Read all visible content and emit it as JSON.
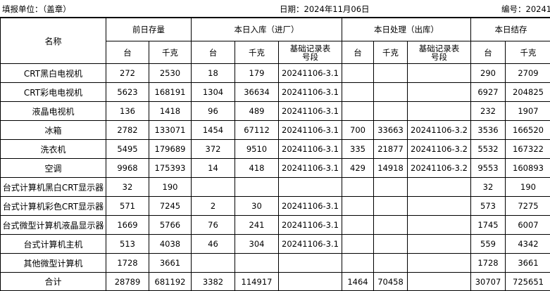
{
  "header": {
    "unit": "填报单位：（盖章）",
    "date": "日期：2024年11月06日",
    "number": "编号：20241"
  },
  "table": {
    "name_header": "名称",
    "group_headers": [
      {
        "label": "前日存量",
        "span": 2
      },
      {
        "label": "本日入库（进厂）",
        "span": 3
      },
      {
        "label": "本日处理（出库）",
        "span": 3
      },
      {
        "label": "本日结存",
        "span": 2
      }
    ],
    "sub_headers": [
      "台",
      "千克",
      "台",
      "千克",
      "基础记录表号段",
      "台",
      "千克",
      "基础记录表号段",
      "台",
      "千克"
    ],
    "rows": [
      [
        "CRT黑白电视机",
        272,
        2530,
        18,
        179,
        "20241106-3.1",
        null,
        null,
        null,
        290,
        2709
      ],
      [
        "CRT彩电电视机",
        5623,
        168191,
        1304,
        36634,
        "20241106-3.1",
        null,
        null,
        null,
        6927,
        204825
      ],
      [
        "液晶电视机",
        136,
        1418,
        96,
        489,
        "20241106-3.1",
        null,
        null,
        null,
        232,
        1907
      ],
      [
        "冰箱",
        2782,
        133071,
        1454,
        67112,
        "20241106-3.1",
        700,
        33663,
        "20241106-3.2",
        3536,
        166520
      ],
      [
        "洗衣机",
        5495,
        179689,
        372,
        9510,
        "20241106-3.1",
        335,
        21877,
        "20241106-3.2",
        5532,
        167322
      ],
      [
        "空调",
        9968,
        175393,
        14,
        418,
        "20241106-3.1",
        429,
        14918,
        "20241106-3.2",
        9553,
        160893
      ],
      [
        "台式计算机黑白CRT显示器",
        32,
        190,
        null,
        null,
        null,
        null,
        null,
        null,
        32,
        190
      ],
      [
        "台式计算机彩色CRT显示器",
        571,
        7245,
        2,
        30,
        "20241106-3.1",
        null,
        null,
        null,
        573,
        7275
      ],
      [
        "台式微型计算机液晶显示器",
        1669,
        5766,
        76,
        241,
        "20241106-3.1",
        null,
        null,
        null,
        1745,
        6007
      ],
      [
        "台式计算机主机",
        513,
        4038,
        46,
        304,
        "20241106-3.1",
        null,
        null,
        null,
        559,
        4342
      ],
      [
        "其他微型计算机",
        1728,
        3661,
        null,
        null,
        null,
        null,
        null,
        null,
        1728,
        3661
      ],
      [
        "合计",
        28789,
        681192,
        3382,
        114917,
        null,
        1464,
        70458,
        null,
        30707,
        725651
      ]
    ]
  }
}
